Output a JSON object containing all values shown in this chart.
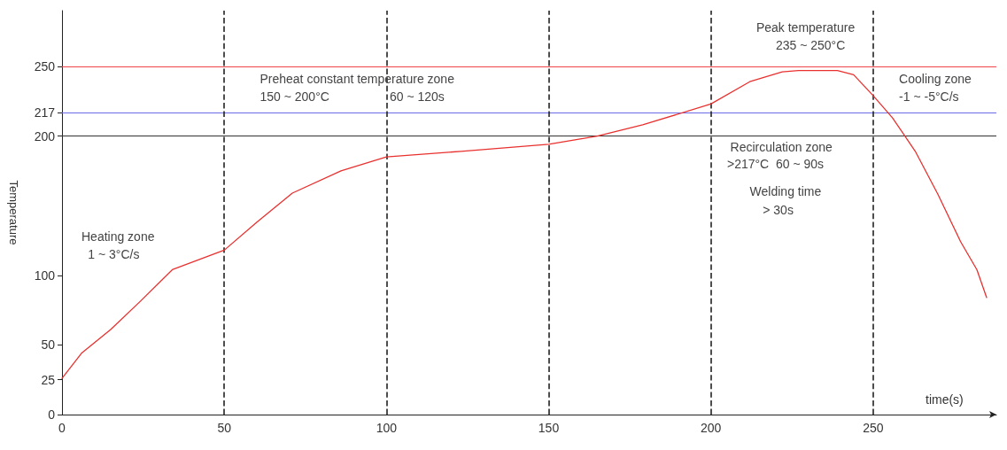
{
  "chart_data": {
    "type": "line",
    "xlabel": "time(s)",
    "ylabel": "Temperature",
    "xlim": [
      0,
      288
    ],
    "xticks": [
      0,
      50,
      100,
      150,
      200,
      250
    ],
    "ylim": [
      0,
      290
    ],
    "yticks": [
      0,
      25,
      50,
      100,
      200,
      217,
      250
    ],
    "grid": false,
    "marker": "none",
    "line_style": "solid",
    "series": [
      {
        "color": "#e8312f",
        "x": [
          0,
          6,
          15,
          24,
          34,
          50,
          60,
          71,
          86,
          100,
          123,
          150,
          165,
          179,
          200,
          212,
          222,
          227,
          239,
          244,
          250,
          256,
          263,
          270,
          277,
          282,
          285
        ],
        "values": [
          26,
          44,
          61,
          81,
          104,
          118,
          138,
          159,
          175,
          185,
          189,
          194,
          200,
          208,
          223,
          239,
          246,
          247,
          247,
          244,
          229,
          213,
          189,
          158,
          124,
          104,
          84
        ]
      }
    ],
    "ref_lines": [
      {
        "axis": "y",
        "value": 250,
        "label": null,
        "color": "#f0454a",
        "line_style": "solid"
      },
      {
        "axis": "y",
        "value": 217,
        "label": null,
        "color": "#6b6be8",
        "line_style": "solid"
      },
      {
        "axis": "y",
        "value": 200,
        "label": null,
        "color": "#333333",
        "line_style": "solid"
      },
      {
        "axis": "x",
        "value": 50,
        "label": null,
        "color": "#222222",
        "line_style": "dashed"
      },
      {
        "axis": "x",
        "value": 100,
        "label": null,
        "color": "#222222",
        "line_style": "dashed"
      },
      {
        "axis": "x",
        "value": 150,
        "label": null,
        "color": "#222222",
        "line_style": "dashed"
      },
      {
        "axis": "x",
        "value": 200,
        "label": null,
        "color": "#222222",
        "line_style": "dashed"
      },
      {
        "axis": "x",
        "value": 250,
        "label": null,
        "color": "#222222",
        "line_style": "dashed"
      }
    ],
    "annotations": [
      "Peak temperature",
      "235 ~ 250°C",
      "Preheat constant temperature zone",
      "150 ~ 200°C",
      "60 ~ 120s",
      "Recirculation zone",
      ">217°C  60 ~ 90s",
      "Welding time",
      "> 30s",
      "Cooling zone",
      "-1 ~ -5°C/s",
      "Heating zone",
      "1 ~ 3°C/s"
    ]
  }
}
